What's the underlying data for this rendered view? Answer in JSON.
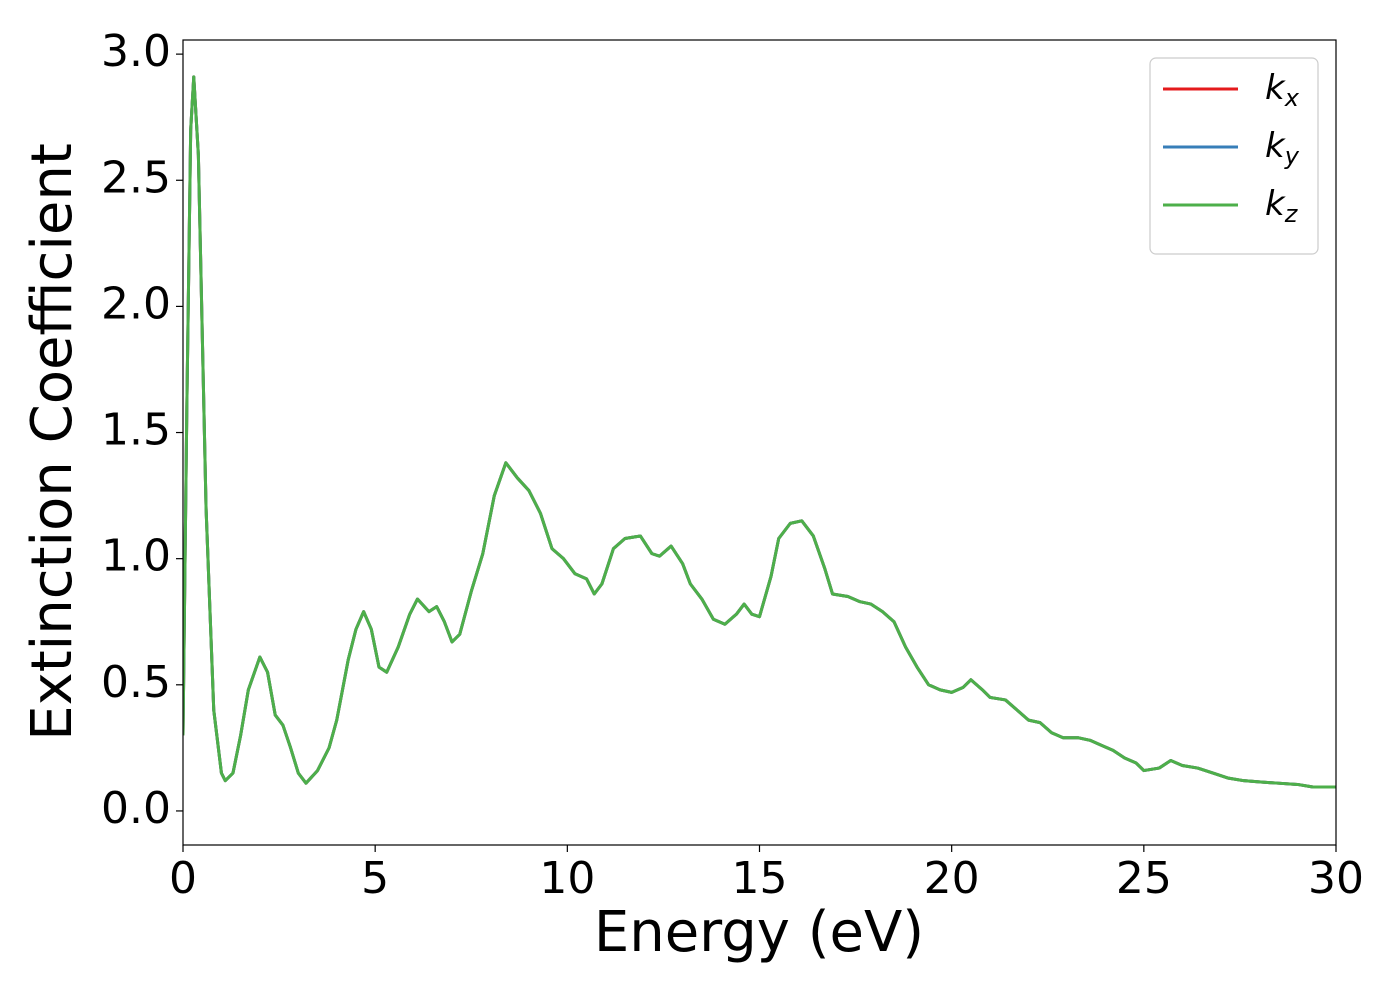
{
  "chart_data": {
    "type": "line",
    "xlabel": "Energy (eV)",
    "ylabel": "Extinction Coefficient",
    "xlim": [
      0,
      30
    ],
    "xticks": [
      0,
      5,
      10,
      15,
      20,
      25,
      30
    ],
    "ylim": [
      -0.135,
      3.056
    ],
    "yticks": [
      {
        "value": 0,
        "label": "0.0"
      },
      {
        "value": 0.5,
        "label": "0.5"
      },
      {
        "value": 1,
        "label": "1.0"
      },
      {
        "value": 1.5,
        "label": "1.5"
      },
      {
        "value": 2,
        "label": "2.0"
      },
      {
        "value": 2.5,
        "label": "2.5"
      },
      {
        "value": 3,
        "label": "3.0"
      }
    ],
    "legend": "upper right",
    "x": [
      0.0,
      0.1,
      0.2,
      0.28,
      0.4,
      0.6,
      0.8,
      1.0,
      1.1,
      1.3,
      1.5,
      1.7,
      2.0,
      2.2,
      2.4,
      2.6,
      2.8,
      3.0,
      3.2,
      3.5,
      3.8,
      4.0,
      4.3,
      4.5,
      4.7,
      4.9,
      5.1,
      5.3,
      5.6,
      5.9,
      6.1,
      6.4,
      6.6,
      6.8,
      7.0,
      7.2,
      7.5,
      7.8,
      8.1,
      8.4,
      8.7,
      9.0,
      9.3,
      9.6,
      9.9,
      10.2,
      10.5,
      10.7,
      10.9,
      11.2,
      11.5,
      11.9,
      12.2,
      12.4,
      12.7,
      13.0,
      13.2,
      13.5,
      13.8,
      14.1,
      14.4,
      14.6,
      14.8,
      15.0,
      15.3,
      15.5,
      15.8,
      16.1,
      16.4,
      16.7,
      16.9,
      17.3,
      17.6,
      17.9,
      18.2,
      18.5,
      18.8,
      19.1,
      19.4,
      19.7,
      20.0,
      20.3,
      20.5,
      20.8,
      21.0,
      21.4,
      21.7,
      22.0,
      22.3,
      22.6,
      22.9,
      23.3,
      23.6,
      23.9,
      24.2,
      24.5,
      24.8,
      25.0,
      25.4,
      25.7,
      26.0,
      26.4,
      26.8,
      27.2,
      27.6,
      28.0,
      28.5,
      29.0,
      29.4,
      30.0
    ],
    "series": [
      {
        "name": "kx",
        "color": "#e41a1c",
        "values": [
          0.3,
          1.6,
          2.7,
          2.91,
          2.6,
          1.2,
          0.4,
          0.15,
          0.12,
          0.15,
          0.3,
          0.48,
          0.61,
          0.55,
          0.38,
          0.34,
          0.25,
          0.15,
          0.11,
          0.16,
          0.25,
          0.36,
          0.6,
          0.72,
          0.79,
          0.72,
          0.57,
          0.55,
          0.65,
          0.78,
          0.84,
          0.79,
          0.81,
          0.75,
          0.67,
          0.7,
          0.87,
          1.02,
          1.25,
          1.38,
          1.32,
          1.27,
          1.18,
          1.04,
          1.0,
          0.94,
          0.92,
          0.86,
          0.9,
          1.04,
          1.08,
          1.09,
          1.02,
          1.01,
          1.05,
          0.98,
          0.9,
          0.84,
          0.76,
          0.74,
          0.78,
          0.82,
          0.78,
          0.77,
          0.93,
          1.08,
          1.14,
          1.15,
          1.09,
          0.96,
          0.86,
          0.85,
          0.83,
          0.82,
          0.79,
          0.75,
          0.65,
          0.57,
          0.5,
          0.48,
          0.47,
          0.49,
          0.52,
          0.48,
          0.45,
          0.44,
          0.4,
          0.36,
          0.35,
          0.31,
          0.29,
          0.29,
          0.28,
          0.26,
          0.24,
          0.21,
          0.19,
          0.16,
          0.17,
          0.2,
          0.18,
          0.17,
          0.15,
          0.13,
          0.12,
          0.115,
          0.11,
          0.105,
          0.095,
          0.095
        ]
      },
      {
        "name": "ky",
        "color": "#377eb8",
        "values": [
          0.3,
          1.6,
          2.7,
          2.91,
          2.6,
          1.2,
          0.4,
          0.15,
          0.12,
          0.15,
          0.3,
          0.48,
          0.61,
          0.55,
          0.38,
          0.34,
          0.25,
          0.15,
          0.11,
          0.16,
          0.25,
          0.36,
          0.6,
          0.72,
          0.79,
          0.72,
          0.57,
          0.55,
          0.65,
          0.78,
          0.84,
          0.79,
          0.81,
          0.75,
          0.67,
          0.7,
          0.87,
          1.02,
          1.25,
          1.38,
          1.32,
          1.27,
          1.18,
          1.04,
          1.0,
          0.94,
          0.92,
          0.86,
          0.9,
          1.04,
          1.08,
          1.09,
          1.02,
          1.01,
          1.05,
          0.98,
          0.9,
          0.84,
          0.76,
          0.74,
          0.78,
          0.82,
          0.78,
          0.77,
          0.93,
          1.08,
          1.14,
          1.15,
          1.09,
          0.96,
          0.86,
          0.85,
          0.83,
          0.82,
          0.79,
          0.75,
          0.65,
          0.57,
          0.5,
          0.48,
          0.47,
          0.49,
          0.52,
          0.48,
          0.45,
          0.44,
          0.4,
          0.36,
          0.35,
          0.31,
          0.29,
          0.29,
          0.28,
          0.26,
          0.24,
          0.21,
          0.19,
          0.16,
          0.17,
          0.2,
          0.18,
          0.17,
          0.15,
          0.13,
          0.12,
          0.115,
          0.11,
          0.105,
          0.095,
          0.095
        ]
      },
      {
        "name": "kz",
        "color": "#4daf4a",
        "values": [
          0.3,
          1.6,
          2.7,
          2.91,
          2.6,
          1.2,
          0.4,
          0.15,
          0.12,
          0.15,
          0.3,
          0.48,
          0.61,
          0.55,
          0.38,
          0.34,
          0.25,
          0.15,
          0.11,
          0.16,
          0.25,
          0.36,
          0.6,
          0.72,
          0.79,
          0.72,
          0.57,
          0.55,
          0.65,
          0.78,
          0.84,
          0.79,
          0.81,
          0.75,
          0.67,
          0.7,
          0.87,
          1.02,
          1.25,
          1.38,
          1.32,
          1.27,
          1.18,
          1.04,
          1.0,
          0.94,
          0.92,
          0.86,
          0.9,
          1.04,
          1.08,
          1.09,
          1.02,
          1.01,
          1.05,
          0.98,
          0.9,
          0.84,
          0.76,
          0.74,
          0.78,
          0.82,
          0.78,
          0.77,
          0.93,
          1.08,
          1.14,
          1.15,
          1.09,
          0.96,
          0.86,
          0.85,
          0.83,
          0.82,
          0.79,
          0.75,
          0.65,
          0.57,
          0.5,
          0.48,
          0.47,
          0.49,
          0.52,
          0.48,
          0.45,
          0.44,
          0.4,
          0.36,
          0.35,
          0.31,
          0.29,
          0.29,
          0.28,
          0.26,
          0.24,
          0.21,
          0.19,
          0.16,
          0.17,
          0.2,
          0.18,
          0.17,
          0.15,
          0.13,
          0.12,
          0.115,
          0.11,
          0.105,
          0.095,
          0.095
        ]
      }
    ]
  }
}
